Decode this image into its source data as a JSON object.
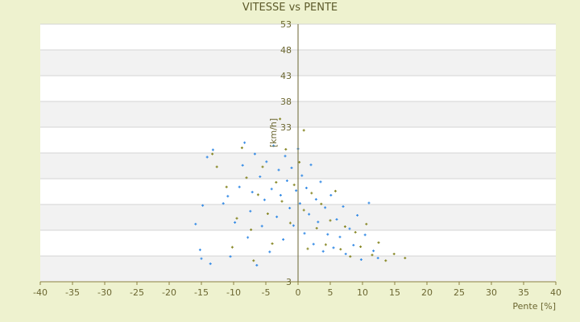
{
  "chart_data": {
    "type": "scatter",
    "title": "VITESSE vs PENTE",
    "xlabel": "Pente [%]",
    "ylabel": "[km/h]",
    "xlim": [
      -40,
      40
    ],
    "ylim": [
      3,
      53
    ],
    "x_ticks": [
      -40,
      -35,
      -30,
      -25,
      -20,
      -15,
      -10,
      -5,
      0,
      5,
      10,
      15,
      20,
      25,
      30,
      35,
      40
    ],
    "y_ticks": [
      3,
      8,
      13,
      18,
      23,
      28,
      33,
      38,
      43,
      48,
      53
    ],
    "y_tick_labels": [
      "3",
      "",
      "",
      "",
      "",
      "",
      "33",
      "38",
      "43",
      "48",
      "53"
    ],
    "grid": true,
    "legend": "none",
    "series": [
      {
        "color": "#3a8ee6",
        "marker": "cross",
        "points": [
          [
            -15.9,
            14.2
          ],
          [
            -15.2,
            9.2
          ],
          [
            -15.0,
            7.5
          ],
          [
            -14.8,
            17.8
          ],
          [
            -14.1,
            27.2
          ],
          [
            -13.6,
            6.5
          ],
          [
            -13.2,
            28.6
          ],
          [
            -11.6,
            18.2
          ],
          [
            -10.9,
            19.6
          ],
          [
            -10.5,
            7.9
          ],
          [
            -9.8,
            14.5
          ],
          [
            -9.1,
            21.4
          ],
          [
            -8.6,
            25.6
          ],
          [
            -8.3,
            30.0
          ],
          [
            -7.8,
            11.6
          ],
          [
            -7.4,
            16.7
          ],
          [
            -7.1,
            20.4
          ],
          [
            -6.7,
            27.8
          ],
          [
            -6.4,
            6.2
          ],
          [
            -5.9,
            23.4
          ],
          [
            -5.6,
            13.8
          ],
          [
            -5.2,
            18.9
          ],
          [
            -4.9,
            26.3
          ],
          [
            -4.4,
            8.8
          ],
          [
            -4.1,
            21.0
          ],
          [
            -3.8,
            29.4
          ],
          [
            -3.3,
            15.6
          ],
          [
            -3.0,
            24.7
          ],
          [
            -2.7,
            19.8
          ],
          [
            -2.3,
            11.2
          ],
          [
            -2.0,
            27.4
          ],
          [
            -1.7,
            22.6
          ],
          [
            -1.3,
            17.3
          ],
          [
            -1.0,
            25.1
          ],
          [
            -0.7,
            13.9
          ],
          [
            -0.3,
            20.7
          ],
          [
            0.0,
            28.8
          ],
          [
            0.3,
            18.2
          ],
          [
            0.6,
            23.6
          ],
          [
            1.0,
            12.4
          ],
          [
            1.3,
            21.2
          ],
          [
            1.7,
            16.1
          ],
          [
            2.0,
            25.7
          ],
          [
            2.4,
            10.3
          ],
          [
            2.8,
            19.0
          ],
          [
            3.1,
            14.6
          ],
          [
            3.5,
            22.4
          ],
          [
            3.9,
            8.9
          ],
          [
            4.2,
            17.4
          ],
          [
            4.6,
            12.2
          ],
          [
            5.1,
            19.8
          ],
          [
            5.5,
            9.6
          ],
          [
            6.0,
            15.1
          ],
          [
            6.5,
            11.7
          ],
          [
            7.0,
            17.6
          ],
          [
            7.4,
            8.4
          ],
          [
            8.0,
            13.3
          ],
          [
            8.6,
            10.1
          ],
          [
            9.2,
            15.9
          ],
          [
            9.8,
            7.3
          ],
          [
            10.4,
            12.1
          ],
          [
            11.0,
            18.3
          ],
          [
            11.7,
            9.0
          ],
          [
            12.4,
            7.6
          ]
        ]
      },
      {
        "color": "#8a8a2a",
        "marker": "cross",
        "points": [
          [
            -13.3,
            27.8
          ],
          [
            -12.6,
            25.3
          ],
          [
            -11.1,
            21.4
          ],
          [
            -10.2,
            9.7
          ],
          [
            -9.5,
            15.3
          ],
          [
            -8.7,
            29.0
          ],
          [
            -8.0,
            23.2
          ],
          [
            -7.3,
            13.1
          ],
          [
            -6.9,
            7.1
          ],
          [
            -6.2,
            19.9
          ],
          [
            -5.5,
            25.3
          ],
          [
            -4.7,
            16.2
          ],
          [
            -4.0,
            10.4
          ],
          [
            -3.4,
            22.3
          ],
          [
            -2.8,
            34.6
          ],
          [
            -2.5,
            18.6
          ],
          [
            -1.9,
            28.7
          ],
          [
            -1.2,
            14.4
          ],
          [
            -0.6,
            21.8
          ],
          [
            0.2,
            26.2
          ],
          [
            0.9,
            16.9
          ],
          [
            1.5,
            9.4
          ],
          [
            2.1,
            20.2
          ],
          [
            2.9,
            13.4
          ],
          [
            3.6,
            18.1
          ],
          [
            4.3,
            10.2
          ],
          [
            5.0,
            14.9
          ],
          [
            5.8,
            20.6
          ],
          [
            6.6,
            9.3
          ],
          [
            7.3,
            13.7
          ],
          [
            8.1,
            7.9
          ],
          [
            8.9,
            12.6
          ],
          [
            9.7,
            9.8
          ],
          [
            10.6,
            14.2
          ],
          [
            11.5,
            8.2
          ],
          [
            12.5,
            10.6
          ],
          [
            13.6,
            7.1
          ],
          [
            14.9,
            8.4
          ],
          [
            16.6,
            7.6
          ],
          [
            0.9,
            32.4
          ]
        ]
      }
    ]
  }
}
